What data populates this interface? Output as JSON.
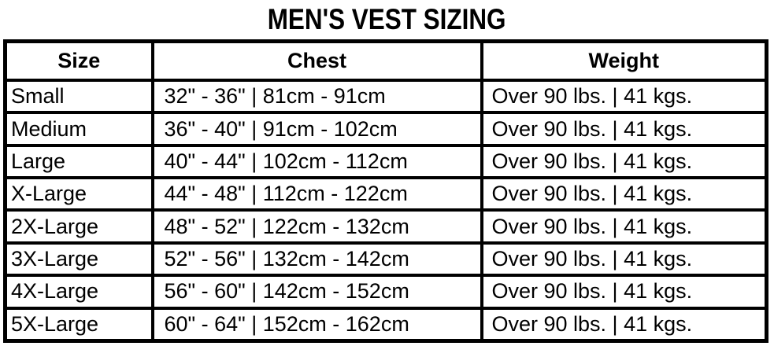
{
  "colors": {
    "background": "#ffffff",
    "text": "#000000",
    "border": "#000000"
  },
  "chart_data": {
    "type": "table",
    "title": "MEN'S VEST SIZING",
    "columns": [
      "Size",
      "Chest",
      "Weight"
    ],
    "rows": [
      [
        "Small",
        "32\" - 36\" | 81cm - 91cm",
        "Over 90 lbs. | 41 kgs."
      ],
      [
        "Medium",
        "36\" - 40\" | 91cm - 102cm",
        "Over 90 lbs. | 41 kgs."
      ],
      [
        "Large",
        "40\" - 44\" | 102cm - 112cm",
        "Over 90 lbs. | 41 kgs."
      ],
      [
        "X-Large",
        "44\" - 48\" | 112cm - 122cm",
        "Over 90 lbs. | 41 kgs."
      ],
      [
        "2X-Large",
        "48\" - 52\" | 122cm - 132cm",
        "Over 90 lbs. | 41 kgs."
      ],
      [
        "3X-Large",
        "52\" - 56\" | 132cm - 142cm",
        "Over 90 lbs. | 41 kgs."
      ],
      [
        "4X-Large",
        "56\" - 60\" | 142cm - 152cm",
        "Over 90 lbs. | 41 kgs."
      ],
      [
        "5X-Large",
        "60\" - 64\" | 152cm - 162cm",
        "Over 90 lbs. | 41 kgs."
      ]
    ]
  }
}
